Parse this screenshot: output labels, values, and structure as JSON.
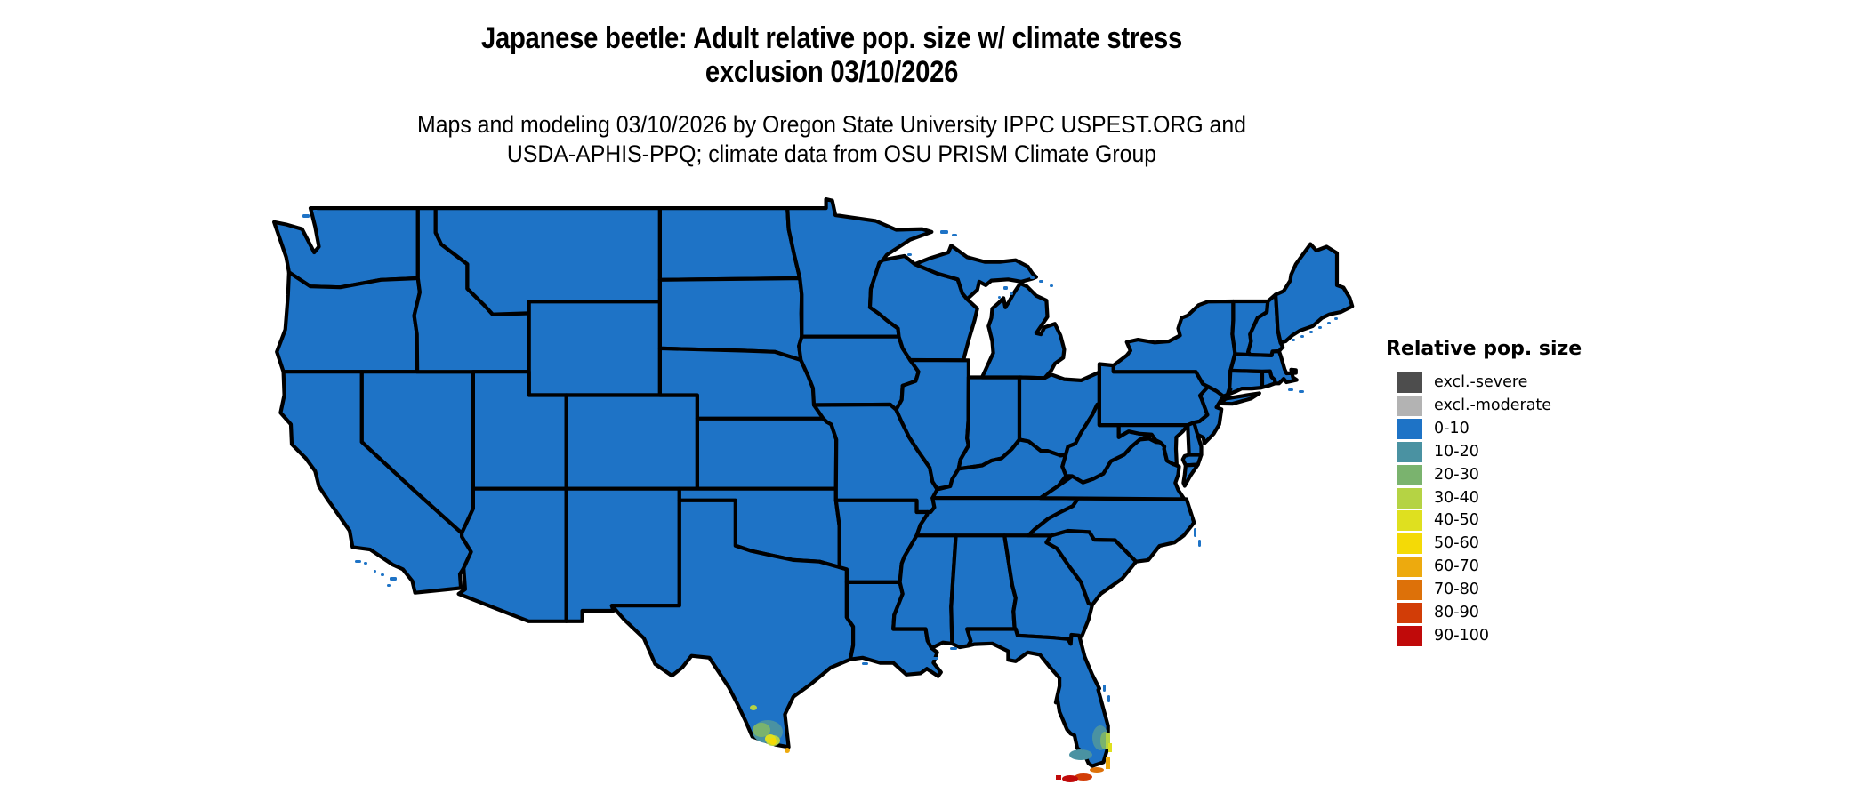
{
  "figure": {
    "title_line1": "Japanese beetle: Adult relative pop. size w/ climate stress",
    "title_line2": "exclusion 03/10/2026",
    "subtitle_line1": "Maps and modeling 03/10/2026 by Oregon State University IPPC USPEST.ORG and",
    "subtitle_line2": "USDA-APHIS-PPQ; climate data from OSU PRISM Climate Group"
  },
  "legend": {
    "title": "Relative pop. size",
    "entries": [
      {
        "label": "excl.-severe",
        "color": "#4d4d4d"
      },
      {
        "label": "excl.-moderate",
        "color": "#b3b3b3"
      },
      {
        "label": "0-10",
        "color": "#1e73c6"
      },
      {
        "label": "10-20",
        "color": "#4a92a2"
      },
      {
        "label": "20-30",
        "color": "#7ab36e"
      },
      {
        "label": "30-40",
        "color": "#b5d344"
      },
      {
        "label": "40-50",
        "color": "#dfe01f"
      },
      {
        "label": "50-60",
        "color": "#f4da06"
      },
      {
        "label": "60-70",
        "color": "#edaa0e"
      },
      {
        "label": "70-80",
        "color": "#dd7109"
      },
      {
        "label": "80-90",
        "color": "#d23d07"
      },
      {
        "label": "90-100",
        "color": "#c00a0a"
      }
    ]
  },
  "map": {
    "region": "Continental United States",
    "land_color": "#1e73c6",
    "border_color": "#000000",
    "background_color": "#ffffff",
    "hotspots": [
      {
        "area": "South Texas (Rio Grande Valley)",
        "values": "10-70"
      },
      {
        "area": "South Florida and Florida Keys",
        "values": "10-100"
      }
    ]
  }
}
